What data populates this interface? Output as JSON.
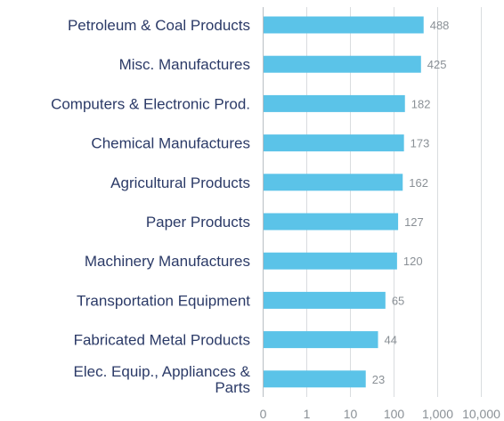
{
  "chart_data": {
    "type": "bar",
    "orientation": "horizontal",
    "x_scale": "log",
    "categories": [
      "Petroleum & Coal Products",
      "Misc. Manufactures",
      "Computers & Electronic Prod.",
      "Chemical Manufactures",
      "Agricultural Products",
      "Paper Products",
      "Machinery Manufactures",
      "Transportation Equipment",
      "Fabricated Metal Products",
      "Elec. Equip., Appliances & Parts"
    ],
    "values": [
      488,
      425,
      182,
      173,
      162,
      127,
      120,
      65,
      44,
      23
    ],
    "value_labels": [
      "488",
      "425",
      "182",
      "173",
      "162",
      "127",
      "120",
      "65",
      "44",
      "23"
    ],
    "x_ticks": [
      0,
      1,
      10,
      100,
      1000,
      10000
    ],
    "x_tick_labels": [
      "0",
      "1",
      "10",
      "100",
      "1,000",
      "10,000"
    ],
    "grid": true,
    "colors": {
      "bar": "#5bc3e8",
      "category_text": "#2b3a67",
      "value_text": "#8a9096",
      "grid": "#d9dcdf"
    }
  }
}
